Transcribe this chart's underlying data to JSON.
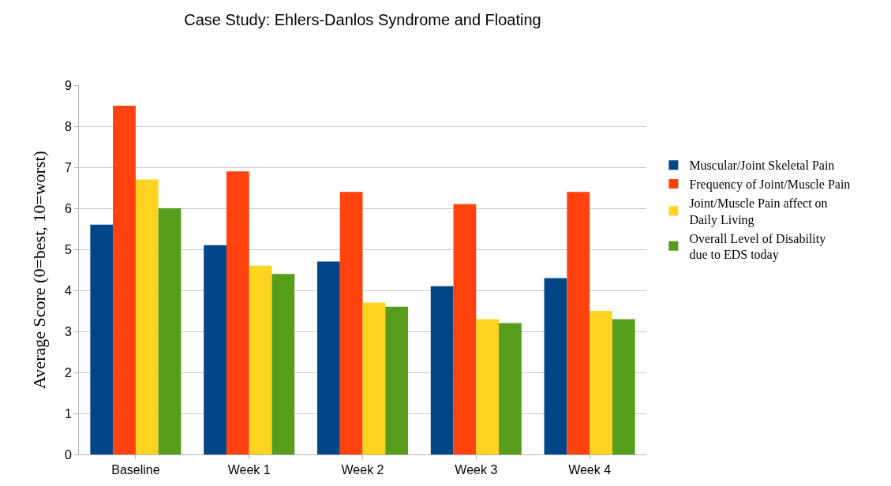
{
  "chart_data": {
    "type": "bar",
    "title": "Case Study: Ehlers-Danlos Syndrome and Floating",
    "ylabel": "Average Score (0=best, 10=worst)",
    "categories": [
      "Baseline",
      "Week 1",
      "Week 2",
      "Week 3",
      "Week 4"
    ],
    "series": [
      {
        "name": "Muscular/Joint Skeletal Pain",
        "color": "#004586",
        "values": [
          5.6,
          5.1,
          4.7,
          4.1,
          4.3
        ]
      },
      {
        "name": "Frequency of Joint/Muscle Pain",
        "color": "#ff420e",
        "values": [
          8.5,
          6.9,
          6.4,
          6.1,
          6.4
        ]
      },
      {
        "name": "Joint/Muscle Pain affect on Daily Living",
        "color": "#ffd320",
        "values": [
          6.7,
          4.6,
          3.7,
          3.3,
          3.5
        ]
      },
      {
        "name": "Overall Level of Disability due to EDS today",
        "color": "#579d1c",
        "values": [
          6.0,
          4.4,
          3.6,
          3.2,
          3.3
        ]
      }
    ],
    "ylim": [
      0,
      9
    ],
    "yticks": [
      0,
      1,
      2,
      3,
      4,
      5,
      6,
      7,
      8,
      9
    ],
    "grid": "y",
    "legend": "right"
  }
}
